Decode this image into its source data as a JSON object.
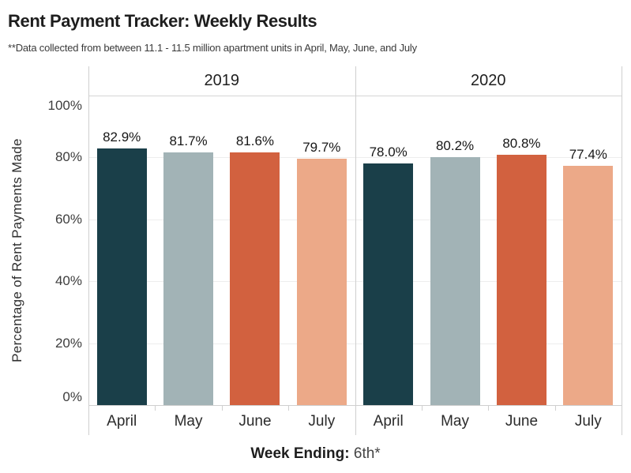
{
  "title": "Rent Payment Tracker: Weekly Results",
  "subtitle": "**Data collected from between 11.1 - 11.5 million apartment units in April, May, June, and July",
  "y_axis": {
    "title": "Percentage of Rent Payments Made"
  },
  "x_axis": {
    "caption_label": "Week Ending:",
    "caption_value": "6th*"
  },
  "chart_data": {
    "type": "bar",
    "group_headers": [
      "2019",
      "2020"
    ],
    "categories": [
      "April",
      "May",
      "June",
      "July"
    ],
    "series": [
      {
        "name": "2019",
        "values": [
          82.9,
          81.7,
          81.6,
          79.7
        ],
        "value_labels": [
          "82.9%",
          "81.7%",
          "81.6%",
          "79.7%"
        ]
      },
      {
        "name": "2020",
        "values": [
          78.0,
          80.2,
          80.8,
          77.4
        ],
        "value_labels": [
          "78.0%",
          "80.2%",
          "80.8%",
          "77.4%"
        ]
      }
    ],
    "y_ticks": [
      {
        "value": 0,
        "label": "0%"
      },
      {
        "value": 20,
        "label": "20%"
      },
      {
        "value": 40,
        "label": "40%"
      },
      {
        "value": 60,
        "label": "60%"
      },
      {
        "value": 80,
        "label": "80%"
      },
      {
        "value": 100,
        "label": "100%"
      }
    ],
    "ylim": [
      0,
      100
    ],
    "ylabel": "Percentage of Rent Payments Made",
    "xlabel": "Week Ending: 6th*",
    "bar_colors_by_category": [
      "#1a3f49",
      "#a2b3b6",
      "#d2613f",
      "#eca988"
    ],
    "grid": true,
    "legend": "none"
  },
  "colors": {
    "april_bar": "#1a3f49",
    "may_bar": "#a2b3b6",
    "june_bar": "#d2613f",
    "july_bar": "#eca988",
    "frame_line": "#cfcfcf",
    "gridline": "#ededed",
    "title_text": "#1e1e1e",
    "body_text": "#3a3a3a"
  }
}
